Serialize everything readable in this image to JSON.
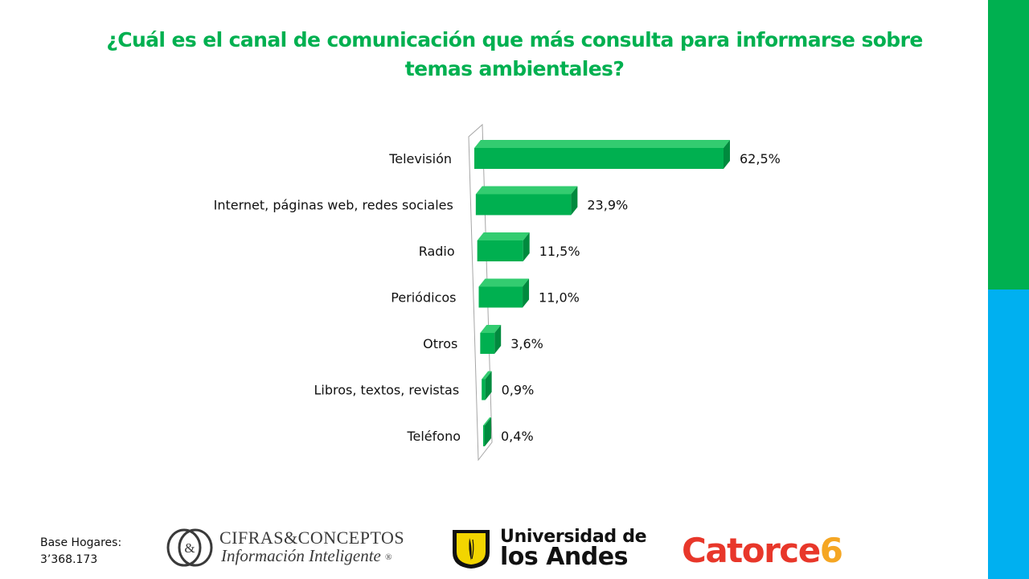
{
  "colors": {
    "accent_green": "#00b050",
    "accent_blue": "#00b0f0",
    "bar_front": "#00b050",
    "bar_top": "#33cc70",
    "bar_side": "#008a3e",
    "catorce_red": "#e8372a",
    "catorce_orange": "#f5a623",
    "uniandes_yellow": "#f2d500"
  },
  "title": "¿Cuál es el canal de comunicación que más consulta para informarse sobre temas ambientales?",
  "chart_data": {
    "type": "bar",
    "orientation": "horizontal",
    "categories": [
      "Televisión",
      "Internet, páginas web, redes sociales",
      "Radio",
      "Periódicos",
      "Otros",
      "Libros, textos, revistas",
      "Teléfono"
    ],
    "values": [
      62.5,
      23.9,
      11.5,
      11.0,
      3.6,
      0.9,
      0.4
    ],
    "value_labels": [
      "62,5%",
      "23,9%",
      "11,5%",
      "11,0%",
      "3,6%",
      "0,9%",
      "0,4%"
    ],
    "unit": "%",
    "grid": false,
    "legend": "none",
    "style": "3d"
  },
  "base_note": {
    "line1": "Base Hogares:",
    "line2": "3’368.173"
  },
  "logos": {
    "cifras": {
      "line1": "CIFRAS&CONCEPTOS",
      "line2": "Información Inteligente",
      "reg": "®",
      "mark": "&"
    },
    "uniandes": {
      "line1": "Universidad de",
      "line2": "los Andes"
    },
    "catorce": {
      "word": "Catorce",
      "number": "6"
    }
  }
}
